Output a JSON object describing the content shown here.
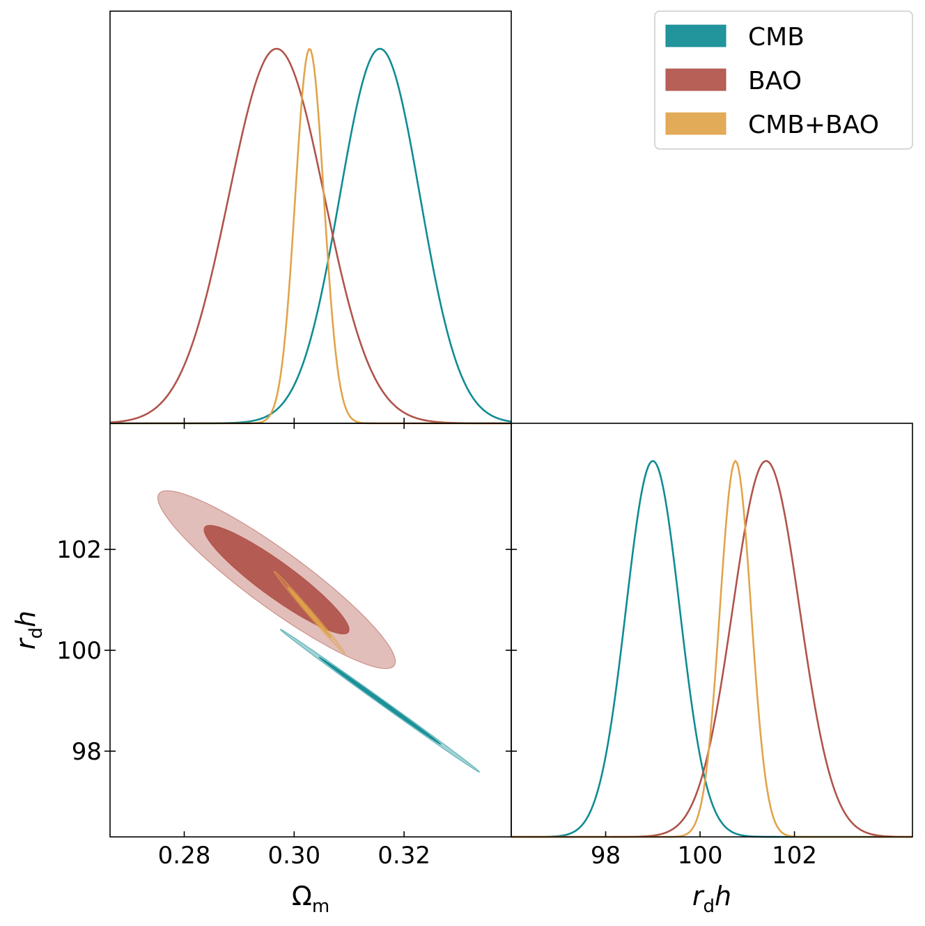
{
  "chart_data": {
    "type": "corner",
    "parameters": [
      "Omega_m",
      "r_d h"
    ],
    "legend": {
      "location": "top-right",
      "entries": [
        {
          "label": "CMB",
          "color": "#0f8b93"
        },
        {
          "label": "BAO",
          "color": "#b0534a"
        },
        {
          "label": "CMB+BAO",
          "color": "#e0a44a"
        }
      ]
    },
    "series": [
      {
        "name": "CMB",
        "color": "#0f8b93",
        "omega_m": {
          "mean": 0.3156,
          "sigma": 0.0073
        },
        "rdh": {
          "mean": 99.0,
          "sigma": 0.57
        },
        "correlation": -0.999
      },
      {
        "name": "BAO",
        "color": "#b0534a",
        "omega_m": {
          "mean": 0.2968,
          "sigma": 0.0087
        },
        "rdh": {
          "mean": 101.4,
          "sigma": 0.71
        },
        "correlation": -0.92
      },
      {
        "name": "CMB+BAO",
        "color": "#e0a44a",
        "omega_m": {
          "mean": 0.3028,
          "sigma": 0.0026
        },
        "rdh": {
          "mean": 100.75,
          "sigma": 0.33
        },
        "correlation": -0.995
      }
    ],
    "panels": [
      {
        "name": "omega-m-marginal",
        "xlabel": "",
        "ylabel": "",
        "xlim": [
          0.2665,
          0.3395
        ],
        "xticks": [
          0.28,
          0.3,
          0.32
        ],
        "show_tick_labels": false
      },
      {
        "name": "rdh-vs-omega-m",
        "xlabel_main": "Ω",
        "xlabel_sub": "m",
        "ylabel_main": "h",
        "ylabel_sub": "d",
        "ylabel_prefix": "r",
        "xlim": [
          0.2665,
          0.3395
        ],
        "ylim": [
          96.3,
          104.5
        ],
        "xticks": [
          0.28,
          0.3,
          0.32
        ],
        "xtick_labels": [
          "0.28",
          "0.30",
          "0.32"
        ],
        "yticks": [
          98,
          100,
          102
        ],
        "ytick_labels": [
          "98",
          "100",
          "102"
        ]
      },
      {
        "name": "rdh-marginal",
        "xlabel_main": "h",
        "xlabel_sub": "d",
        "xlabel_prefix": "r",
        "xlim": [
          96.0,
          104.5
        ],
        "xticks": [
          98,
          100,
          102
        ],
        "xtick_labels": [
          "98",
          "100",
          "102"
        ]
      }
    ]
  }
}
